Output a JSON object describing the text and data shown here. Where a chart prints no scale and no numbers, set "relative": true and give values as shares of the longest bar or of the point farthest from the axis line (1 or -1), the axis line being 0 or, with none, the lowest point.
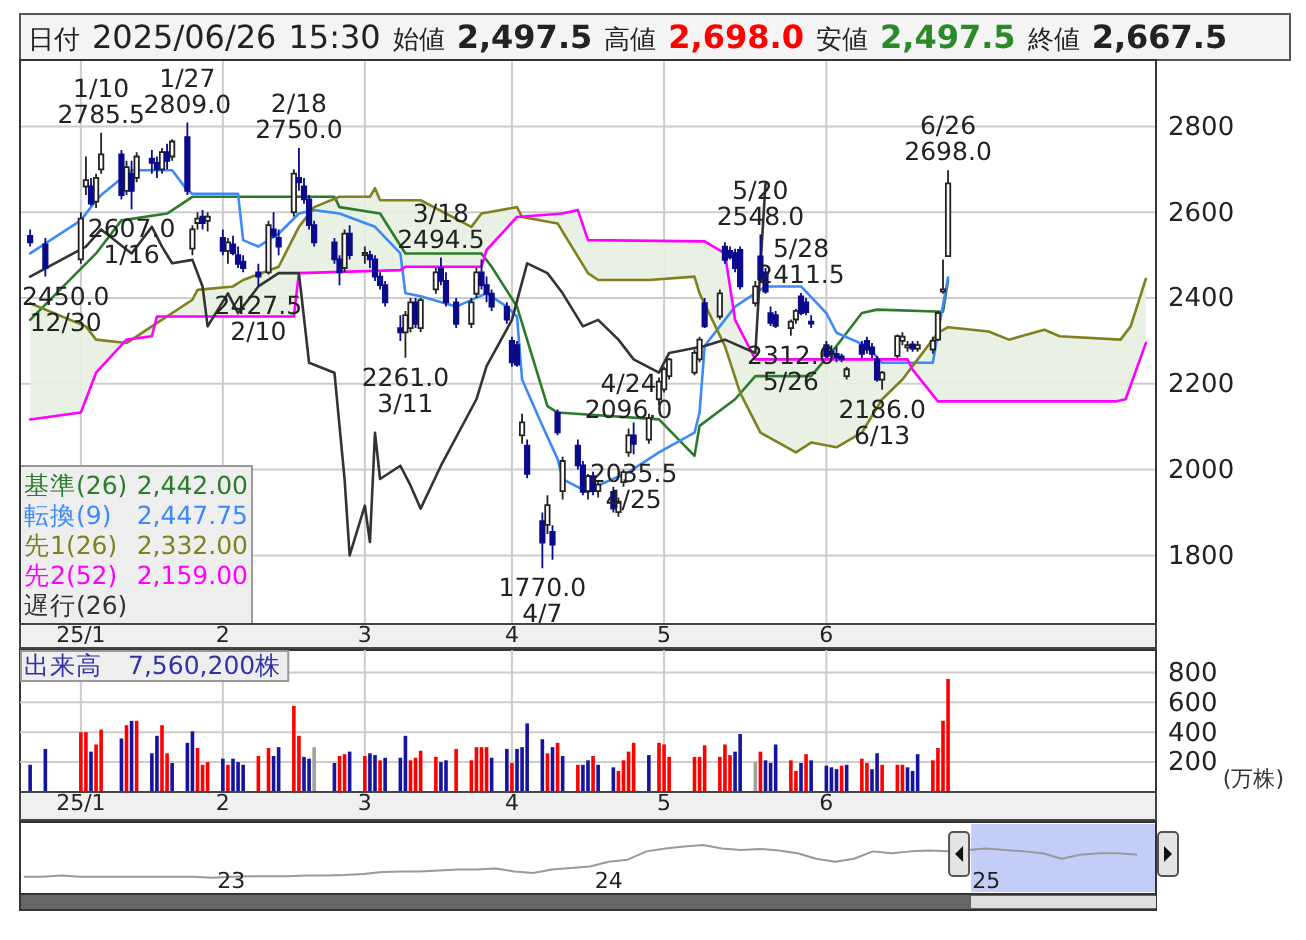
{
  "chart_data": [
    {
      "type": "candlestick",
      "title": "日付 2025/06/26 15:30 始値 2,497.5 高値 2,698.0 安値 2,497.5 終値 2,667.5",
      "x": [
        "2024-12-27",
        "2024-12-30",
        "2025-01-06",
        "2025-01-07",
        "2025-01-08",
        "2025-01-09",
        "2025-01-10",
        "2025-01-14",
        "2025-01-15",
        "2025-01-16",
        "2025-01-17",
        "2025-01-20",
        "2025-01-21",
        "2025-01-22",
        "2025-01-23",
        "2025-01-24",
        "2025-01-27",
        "2025-01-28",
        "2025-01-29",
        "2025-01-30",
        "2025-01-31",
        "2025-02-03",
        "2025-02-04",
        "2025-02-05",
        "2025-02-06",
        "2025-02-07",
        "2025-02-10",
        "2025-02-12",
        "2025-02-13",
        "2025-02-14",
        "2025-02-17",
        "2025-02-18",
        "2025-02-19",
        "2025-02-20",
        "2025-02-21",
        "2025-02-25",
        "2025-02-26",
        "2025-02-27",
        "2025-02-28",
        "2025-03-03",
        "2025-03-04",
        "2025-03-05",
        "2025-03-06",
        "2025-03-07",
        "2025-03-10",
        "2025-03-11",
        "2025-03-12",
        "2025-03-13",
        "2025-03-14",
        "2025-03-17",
        "2025-03-18",
        "2025-03-19",
        "2025-03-21",
        "2025-03-24",
        "2025-03-25",
        "2025-03-26",
        "2025-03-27",
        "2025-03-28",
        "2025-03-31",
        "2025-04-01",
        "2025-04-02",
        "2025-04-03",
        "2025-04-04",
        "2025-04-07",
        "2025-04-08",
        "2025-04-09",
        "2025-04-10",
        "2025-04-11",
        "2025-04-14",
        "2025-04-15",
        "2025-04-16",
        "2025-04-17",
        "2025-04-18",
        "2025-04-21",
        "2025-04-22",
        "2025-04-23",
        "2025-04-24",
        "2025-04-25",
        "2025-04-28",
        "2025-04-30",
        "2025-05-01",
        "2025-05-02",
        "2025-05-07",
        "2025-05-08",
        "2025-05-09",
        "2025-05-12",
        "2025-05-13",
        "2025-05-14",
        "2025-05-15",
        "2025-05-16",
        "2025-05-19",
        "2025-05-20",
        "2025-05-21",
        "2025-05-22",
        "2025-05-23",
        "2025-05-26",
        "2025-05-27",
        "2025-05-28",
        "2025-05-29",
        "2025-05-30",
        "2025-06-02",
        "2025-06-03",
        "2025-06-04",
        "2025-06-05",
        "2025-06-06",
        "2025-06-09",
        "2025-06-10",
        "2025-06-11",
        "2025-06-12",
        "2025-06-13",
        "2025-06-16",
        "2025-06-17",
        "2025-06-18",
        "2025-06-19",
        "2025-06-20",
        "2025-06-23",
        "2025-06-24",
        "2025-06-25",
        "2025-06-26"
      ],
      "ohlc": [
        [
          2545,
          2560,
          2520,
          2530
        ],
        [
          2525,
          2540,
          2450,
          2470
        ],
        [
          2490,
          2600,
          2480,
          2585
        ],
        [
          2660,
          2730,
          2640,
          2675
        ],
        [
          2660,
          2680,
          2615,
          2620
        ],
        [
          2625,
          2690,
          2610,
          2680
        ],
        [
          2700,
          2785.5,
          2690,
          2735
        ],
        [
          2735,
          2745,
          2630,
          2640
        ],
        [
          2650,
          2720,
          2640,
          2705
        ],
        [
          2690,
          2720,
          2607,
          2650
        ],
        [
          2680,
          2740,
          2670,
          2730
        ],
        [
          2725,
          2745,
          2690,
          2715
        ],
        [
          2715,
          2730,
          2680,
          2700
        ],
        [
          2700,
          2750,
          2690,
          2740
        ],
        [
          2740,
          2760,
          2700,
          2720
        ],
        [
          2730,
          2770,
          2720,
          2765
        ],
        [
          2775,
          2809,
          2640,
          2650
        ],
        [
          2515,
          2570,
          2500,
          2560
        ],
        [
          2575,
          2600,
          2560,
          2585
        ],
        [
          2590,
          2605,
          2560,
          2575
        ],
        [
          2580,
          2600,
          2555,
          2590
        ],
        [
          2540,
          2560,
          2500,
          2510
        ],
        [
          2510,
          2540,
          2480,
          2530
        ],
        [
          2525,
          2545,
          2500,
          2505
        ],
        [
          2500,
          2520,
          2470,
          2480
        ],
        [
          2485,
          2500,
          2460,
          2470
        ],
        [
          2460,
          2480,
          2427.5,
          2450
        ],
        [
          2460,
          2580,
          2455,
          2570
        ],
        [
          2560,
          2600,
          2540,
          2545
        ],
        [
          2540,
          2560,
          2500,
          2520
        ],
        [
          2600,
          2700,
          2590,
          2690
        ],
        [
          2680,
          2750,
          2650,
          2670
        ],
        [
          2660,
          2680,
          2620,
          2630
        ],
        [
          2630,
          2640,
          2560,
          2570
        ],
        [
          2570,
          2580,
          2520,
          2530
        ],
        [
          2530,
          2540,
          2480,
          2490
        ],
        [
          2490,
          2500,
          2430,
          2460
        ],
        [
          2470,
          2560,
          2460,
          2550
        ],
        [
          2550,
          2570,
          2490,
          2500
        ],
        [
          2500,
          2520,
          2480,
          2505
        ],
        [
          2500,
          2510,
          2470,
          2490
        ],
        [
          2490,
          2500,
          2440,
          2450
        ],
        [
          2450,
          2460,
          2420,
          2430
        ],
        [
          2430,
          2440,
          2380,
          2390
        ],
        [
          2330,
          2360,
          2300,
          2320
        ],
        [
          2320,
          2370,
          2261,
          2360
        ],
        [
          2330,
          2400,
          2320,
          2390
        ],
        [
          2390,
          2400,
          2330,
          2340
        ],
        [
          2330,
          2400,
          2320,
          2395
        ],
        [
          2420,
          2470,
          2410,
          2460
        ],
        [
          2470,
          2494.5,
          2430,
          2440
        ],
        [
          2440,
          2460,
          2380,
          2390
        ],
        [
          2390,
          2400,
          2330,
          2340
        ],
        [
          2340,
          2400,
          2330,
          2390
        ],
        [
          2410,
          2470,
          2400,
          2460
        ],
        [
          2460,
          2490,
          2420,
          2430
        ],
        [
          2430,
          2450,
          2390,
          2410
        ],
        [
          2410,
          2420,
          2370,
          2380
        ],
        [
          2380,
          2390,
          2340,
          2350
        ],
        [
          2300,
          2310,
          2240,
          2250
        ],
        [
          2290,
          2300,
          2240,
          2245
        ],
        [
          2080,
          2130,
          2060,
          2110
        ],
        [
          2056,
          2070,
          1980,
          1990
        ],
        [
          1880,
          1900,
          1770,
          1830
        ],
        [
          1871,
          1940,
          1850,
          1917
        ],
        [
          1855,
          1870,
          1790,
          1825
        ],
        [
          2133,
          2140,
          2080,
          2087
        ],
        [
          1950,
          2030,
          1930,
          2020
        ],
        [
          2056,
          2070,
          2000,
          2010
        ],
        [
          2010,
          2020,
          1940,
          1948
        ],
        [
          1950,
          1990,
          1930,
          1985
        ],
        [
          1985,
          1995,
          1940,
          1950
        ],
        [
          1950,
          1975,
          1935,
          1965
        ],
        [
          1948,
          1960,
          1900,
          1909
        ],
        [
          1901,
          1935,
          1890,
          1925
        ],
        [
          1971,
          2000,
          1960,
          1994
        ],
        [
          2040,
          2096,
          2030,
          2080
        ],
        [
          2080,
          2110,
          2035.5,
          2060
        ],
        [
          2070,
          2130,
          2060,
          2120
        ],
        [
          2164,
          2215,
          2150,
          2205
        ],
        [
          2187,
          2240,
          2180,
          2234
        ],
        [
          2218,
          2260,
          2210,
          2257
        ],
        [
          2226,
          2280,
          2220,
          2272
        ],
        [
          2257,
          2310,
          2250,
          2303
        ],
        [
          2388,
          2400,
          2330,
          2334
        ],
        [
          2357,
          2420,
          2350,
          2411
        ],
        [
          2520,
          2530,
          2480,
          2489
        ],
        [
          2510,
          2520,
          2490,
          2495
        ],
        [
          2505,
          2515,
          2460,
          2470
        ],
        [
          2512,
          2520,
          2420,
          2427
        ],
        [
          2388,
          2440,
          2380,
          2427
        ],
        [
          2497,
          2548,
          2440,
          2443
        ],
        [
          2460,
          2470,
          2410,
          2415
        ],
        [
          2365,
          2380,
          2335,
          2342
        ],
        [
          2360,
          2370,
          2330,
          2335
        ],
        [
          2330,
          2350,
          2312,
          2345
        ],
        [
          2350,
          2375,
          2340,
          2370
        ],
        [
          2404,
          2411.5,
          2360,
          2365
        ],
        [
          2390,
          2400,
          2360,
          2367
        ],
        [
          2345,
          2360,
          2330,
          2342
        ],
        [
          2290,
          2300,
          2260,
          2265
        ],
        [
          2275,
          2290,
          2260,
          2270
        ],
        [
          2270,
          2285,
          2250,
          2262
        ],
        [
          2264,
          2270,
          2250,
          2257
        ],
        [
          2218,
          2240,
          2210,
          2234
        ],
        [
          2290,
          2300,
          2260,
          2270
        ],
        [
          2300,
          2310,
          2270,
          2280
        ],
        [
          2285,
          2295,
          2260,
          2270
        ],
        [
          2257,
          2265,
          2205,
          2210
        ],
        [
          2210,
          2230,
          2186,
          2226
        ],
        [
          2265,
          2315,
          2260,
          2311
        ],
        [
          2300,
          2320,
          2290,
          2310
        ],
        [
          2285,
          2300,
          2275,
          2290
        ],
        [
          2292,
          2300,
          2275,
          2282
        ],
        [
          2282,
          2300,
          2275,
          2290
        ],
        [
          2280,
          2310,
          2270,
          2300
        ],
        [
          2303,
          2370,
          2300,
          2365
        ],
        [
          2415,
          2490,
          2410,
          2420
        ],
        [
          2497.5,
          2698,
          2497.5,
          2667.5
        ]
      ],
      "series": [
        {
          "name": "基準(26)",
          "type": "line",
          "color": "#2c7a2c",
          "x": [
            "2024-12-27",
            "2025-01-09",
            "2025-01-14",
            "2025-01-23",
            "2025-01-28",
            "2025-02-25",
            "2025-02-26",
            "2025-03-06",
            "2025-03-11",
            "2025-03-26",
            "2025-03-28",
            "2025-04-02",
            "2025-04-08",
            "2025-04-10",
            "2025-04-30",
            "2025-05-07",
            "2025-05-08",
            "2025-05-15",
            "2025-05-19",
            "2025-05-30",
            "2025-06-04",
            "2025-06-09",
            "2025-06-12",
            "2025-06-25",
            "2025-06-26"
          ],
          "values": [
            2349,
            2504,
            2581,
            2597,
            2636,
            2636,
            2612,
            2597,
            2504,
            2504,
            2473,
            2380,
            2148,
            2133,
            2117,
            2032,
            2102,
            2164,
            2218,
            2218,
            2288,
            2365,
            2373,
            2368,
            2442
          ]
        },
        {
          "name": "転換(9)",
          "type": "line",
          "color": "#3d8af7",
          "x": [
            "2024-12-27",
            "2025-01-06",
            "2025-01-09",
            "2025-01-10",
            "2025-01-16",
            "2025-01-24",
            "2025-01-27",
            "2025-01-28",
            "2025-02-06",
            "2025-02-07",
            "2025-02-10",
            "2025-02-14",
            "2025-02-18",
            "2025-02-21",
            "2025-02-26",
            "2025-03-05",
            "2025-03-10",
            "2025-03-11",
            "2025-03-14",
            "2025-03-21",
            "2025-03-27",
            "2025-03-31",
            "2025-04-02",
            "2025-04-03",
            "2025-04-07",
            "2025-04-10",
            "2025-04-11",
            "2025-04-16",
            "2025-04-18",
            "2025-04-24",
            "2025-04-30",
            "2025-05-07",
            "2025-05-08",
            "2025-05-09",
            "2025-05-15",
            "2025-05-21",
            "2025-05-28",
            "2025-06-02",
            "2025-06-04",
            "2025-06-10",
            "2025-06-13",
            "2025-06-23",
            "2025-06-24",
            "2025-06-26"
          ],
          "values": [
            2504,
            2581,
            2628,
            2640,
            2698,
            2698,
            2651,
            2643,
            2643,
            2535,
            2520,
            2550,
            2597,
            2605,
            2597,
            2566,
            2504,
            2411,
            2404,
            2380,
            2411,
            2380,
            2357,
            2210,
            2102,
            2025,
            1978,
            1947,
            1963,
            1994,
            2040,
            2086,
            2133,
            2288,
            2380,
            2427,
            2427,
            2365,
            2319,
            2288,
            2249,
            2249,
            2319,
            2447.75
          ]
        },
        {
          "name": "先1(26)",
          "type": "line",
          "color": "#808020",
          "x": [
            "2024-12-27",
            "2025-01-07",
            "2025-01-09",
            "2025-01-15",
            "2025-01-20",
            "2025-01-28",
            "2025-01-29",
            "2025-02-05",
            "2025-02-07",
            "2025-02-14",
            "2025-02-18",
            "2025-02-21",
            "2025-02-26",
            "2025-03-04",
            "2025-03-05",
            "2025-03-06",
            "2025-03-14",
            "2025-03-24",
            "2025-03-26",
            "2025-04-02",
            "2025-04-03",
            "2025-04-10",
            "2025-04-16",
            "2025-04-18",
            "2025-04-28",
            "2025-05-07",
            "2025-05-08",
            "2025-05-13",
            "2025-05-16",
            "2025-05-20",
            "2025-05-27",
            "2025-05-30",
            "2025-06-04",
            "2025-06-09",
            "2025-06-13",
            "2025-06-17",
            "2025-06-20",
            "2025-06-24",
            "2025-06-26",
            "2025-07-04",
            "2025-07-08",
            "2025-07-15",
            "2025-07-18",
            "2025-07-30",
            "2025-08-01",
            "2025-08-04"
          ],
          "values": [
            2388,
            2334,
            2303,
            2295,
            2334,
            2396,
            2419,
            2427,
            2442,
            2473,
            2566,
            2612,
            2636,
            2636,
            2656,
            2628,
            2628,
            2566,
            2597,
            2612,
            2589,
            2574,
            2458,
            2442,
            2442,
            2450,
            2411,
            2288,
            2179,
            2086,
            2040,
            2063,
            2052,
            2086,
            2164,
            2210,
            2257,
            2319,
            2332,
            2322,
            2303,
            2326,
            2311,
            2303,
            2334,
            2445
          ]
        },
        {
          "name": "先2(52)",
          "type": "line",
          "color": "#ff00ff",
          "x": [
            "2024-12-27",
            "2025-01-06",
            "2025-01-09",
            "2025-01-15",
            "2025-01-20",
            "2025-01-21",
            "2025-02-17",
            "2025-02-18",
            "2025-03-10",
            "2025-03-11",
            "2025-03-26",
            "2025-03-27",
            "2025-04-02",
            "2025-04-11",
            "2025-04-14",
            "2025-04-16",
            "2025-05-09",
            "2025-05-13",
            "2025-05-15",
            "2025-05-19",
            "2025-06-18",
            "2025-06-19",
            "2025-06-24",
            "2025-06-26",
            "2025-07-29",
            "2025-07-31",
            "2025-08-04"
          ],
          "values": [
            2117,
            2133,
            2226,
            2303,
            2311,
            2357,
            2357,
            2458,
            2465,
            2473,
            2473,
            2512,
            2589,
            2597,
            2605,
            2535,
            2532,
            2504,
            2349,
            2257,
            2257,
            2233,
            2159,
            2159,
            2159,
            2164,
            2295
          ]
        },
        {
          "name": "遅行(26)",
          "type": "line",
          "color": "#333333",
          "x": [
            "2024-12-27",
            "2025-01-07",
            "2025-01-10",
            "2025-01-16",
            "2025-01-20",
            "2025-01-22",
            "2025-01-24",
            "2025-01-28",
            "2025-01-30",
            "2025-01-31",
            "2025-02-04",
            "2025-02-06",
            "2025-02-10",
            "2025-02-14",
            "2025-02-18",
            "2025-02-20",
            "2025-02-25",
            "2025-02-27",
            "2025-02-28",
            "2025-03-03",
            "2025-03-04",
            "2025-03-05",
            "2025-03-06",
            "2025-03-10",
            "2025-03-12",
            "2025-03-14",
            "2025-03-18",
            "2025-03-25",
            "2025-03-27",
            "2025-04-01",
            "2025-04-04",
            "2025-04-08",
            "2025-04-10",
            "2025-04-11",
            "2025-04-15",
            "2025-04-18",
            "2025-04-22",
            "2025-04-25",
            "2025-04-30",
            "2025-05-02",
            "2025-05-09",
            "2025-05-13",
            "2025-05-19",
            "2025-05-20",
            "2025-05-21"
          ],
          "values": [
            2450,
            2520,
            2560,
            2504,
            2566,
            2520,
            2481,
            2489,
            2427,
            2334,
            2411,
            2365,
            2427,
            2458,
            2458,
            2249,
            2226,
            1978,
            1800,
            1916,
            1831,
            2086,
            1978,
            2009,
            1963,
            1909,
            2009,
            2164,
            2241,
            2349,
            2481,
            2458,
            2427,
            2411,
            2334,
            2349,
            2303,
            2257,
            2226,
            2272,
            2288,
            2303,
            2272,
            2473,
            2667.5
          ]
        }
      ],
      "annotations": [
        {
          "text": "1/10\n2785.5",
          "x": "2025-01-10",
          "y": 2785.5
        },
        {
          "text": "1/27\n2809.0",
          "x": "2025-01-27",
          "y": 2809
        },
        {
          "text": "2607.0\n1/16",
          "x": "2025-01-16",
          "y": 2607
        },
        {
          "text": "2450.0\n12/30",
          "x": "2024-12-30",
          "y": 2450
        },
        {
          "text": "2/18\n2750.0",
          "x": "2025-02-18",
          "y": 2750
        },
        {
          "text": "2427.5\n2/10",
          "x": "2025-02-10",
          "y": 2427.5
        },
        {
          "text": "3/18\n2494.5",
          "x": "2025-03-18",
          "y": 2494.5
        },
        {
          "text": "2261.0\n3/11",
          "x": "2025-03-11",
          "y": 2261
        },
        {
          "text": "1770.0\n4/7",
          "x": "2025-04-07",
          "y": 1770
        },
        {
          "text": "4/24\n2096.0",
          "x": "2025-04-24",
          "y": 2096
        },
        {
          "text": "2035.5\n4/25",
          "x": "2025-04-25",
          "y": 2035.5
        },
        {
          "text": "5/20\n2548.0",
          "x": "2025-05-20",
          "y": 2548
        },
        {
          "text": "2312.0\n5/26",
          "x": "2025-05-26",
          "y": 2312
        },
        {
          "text": "5/28\n2411.5",
          "x": "2025-05-28",
          "y": 2411.5
        },
        {
          "text": "2186.0\n6/13",
          "x": "2025-06-13",
          "y": 2186
        },
        {
          "text": "6/26\n2698.0",
          "x": "2025-06-26",
          "y": 2698
        },
        "2,442.00",
        "2,447.75",
        "2,332.00",
        "2,159.00"
      ],
      "ylim": [
        1640,
        2955
      ],
      "yticks": [
        1800,
        2000,
        2200,
        2400,
        2600,
        2800
      ],
      "xlim": [
        "2024-12-25",
        "2025-08-06"
      ],
      "xticks": [
        {
          "value": "2025-01-06",
          "label": "25/1"
        },
        {
          "value": "2025-02-03",
          "label": "2"
        },
        {
          "value": "2025-03-03",
          "label": "3"
        },
        {
          "value": "2025-04-01",
          "label": "4"
        },
        {
          "value": "2025-05-01",
          "label": "5"
        },
        {
          "value": "2025-06-02",
          "label": "6"
        }
      ],
      "grid": true,
      "legend": "bottom left"
    },
    {
      "type": "bar",
      "title": "出来高　7,560,200株",
      "ylabel": "(万株)",
      "x": [
        "2024-12-27",
        "2024-12-30",
        "2025-01-06",
        "2025-01-07",
        "2025-01-08",
        "2025-01-09",
        "2025-01-10",
        "2025-01-14",
        "2025-01-15",
        "2025-01-16",
        "2025-01-17",
        "2025-01-20",
        "2025-01-21",
        "2025-01-22",
        "2025-01-23",
        "2025-01-24",
        "2025-01-27",
        "2025-01-28",
        "2025-01-29",
        "2025-01-30",
        "2025-01-31",
        "2025-02-03",
        "2025-02-04",
        "2025-02-05",
        "2025-02-06",
        "2025-02-07",
        "2025-02-10",
        "2025-02-12",
        "2025-02-13",
        "2025-02-14",
        "2025-02-17",
        "2025-02-18",
        "2025-02-19",
        "2025-02-20",
        "2025-02-21",
        "2025-02-25",
        "2025-02-26",
        "2025-02-27",
        "2025-02-28",
        "2025-03-03",
        "2025-03-04",
        "2025-03-05",
        "2025-03-06",
        "2025-03-07",
        "2025-03-10",
        "2025-03-11",
        "2025-03-12",
        "2025-03-13",
        "2025-03-14",
        "2025-03-17",
        "2025-03-18",
        "2025-03-19",
        "2025-03-21",
        "2025-03-24",
        "2025-03-25",
        "2025-03-26",
        "2025-03-27",
        "2025-03-28",
        "2025-03-31",
        "2025-04-01",
        "2025-04-02",
        "2025-04-03",
        "2025-04-04",
        "2025-04-07",
        "2025-04-08",
        "2025-04-09",
        "2025-04-10",
        "2025-04-11",
        "2025-04-14",
        "2025-04-15",
        "2025-04-16",
        "2025-04-17",
        "2025-04-18",
        "2025-04-21",
        "2025-04-22",
        "2025-04-23",
        "2025-04-24",
        "2025-04-25",
        "2025-04-28",
        "2025-04-30",
        "2025-05-01",
        "2025-05-02",
        "2025-05-07",
        "2025-05-08",
        "2025-05-09",
        "2025-05-12",
        "2025-05-13",
        "2025-05-14",
        "2025-05-15",
        "2025-05-16",
        "2025-05-19",
        "2025-05-20",
        "2025-05-21",
        "2025-05-22",
        "2025-05-23",
        "2025-05-26",
        "2025-05-27",
        "2025-05-28",
        "2025-05-29",
        "2025-05-30",
        "2025-06-02",
        "2025-06-03",
        "2025-06-04",
        "2025-06-05",
        "2025-06-06",
        "2025-06-09",
        "2025-06-10",
        "2025-06-11",
        "2025-06-12",
        "2025-06-13",
        "2025-06-16",
        "2025-06-17",
        "2025-06-18",
        "2025-06-19",
        "2025-06-20",
        "2025-06-23",
        "2025-06-24",
        "2025-06-25",
        "2025-06-26"
      ],
      "values": [
        182,
        288,
        400,
        400,
        270,
        318,
        417,
        358,
        447,
        476,
        476,
        259,
        376,
        447,
        259,
        194,
        329,
        406,
        294,
        182,
        200,
        223,
        182,
        223,
        200,
        182,
        241,
        294,
        241,
        300,
        576,
        376,
        235,
        223,
        300,
        194,
        241,
        253,
        270,
        241,
        259,
        247,
        212,
        229,
        229,
        376,
        212,
        229,
        276,
        235,
        200,
        212,
        288,
        212,
        300,
        300,
        300,
        229,
        288,
        194,
        288,
        300,
        459,
        353,
        259,
        300,
        329,
        241,
        182,
        182,
        212,
        241,
        182,
        165,
        141,
        212,
        270,
        329,
        247,
        329,
        318,
        235,
        235,
        235,
        312,
        235,
        318,
        247,
        270,
        388,
        200,
        270,
        212,
        194,
        318,
        212,
        141,
        194,
        253,
        212,
        176,
        165,
        153,
        176,
        182,
        223,
        194,
        153,
        259,
        182,
        182,
        182,
        165,
        141,
        253,
        212,
        294,
        476,
        756
      ],
      "colors": [
        "#1414a0",
        "#1414a0",
        "#ff0000",
        "#ff0000",
        "#1414a0",
        "#ff0000",
        "#ff0000",
        "#1414a0",
        "#ff0000",
        "#1414a0",
        "#ff0000",
        "#1414a0",
        "#1414a0",
        "#ff0000",
        "#ff0000",
        "#1414a0",
        "#1414a0",
        "#1414a0",
        "#ff0000",
        "#ff0000",
        "#ff0000",
        "#1414a0",
        "#ff0000",
        "#1414a0",
        "#1414a0",
        "#1414a0",
        "#ff0000",
        "#ff0000",
        "#1414a0",
        "#1414a0",
        "#ff0000",
        "#ff0000",
        "#1414a0",
        "#1414a0",
        "#a0a0a0",
        "#1414a0",
        "#ff0000",
        "#ff0000",
        "#1414a0",
        "#ff0000",
        "#1414a0",
        "#1414a0",
        "#ff0000",
        "#1414a0",
        "#1414a0",
        "#1414a0",
        "#ff0000",
        "#ff0000",
        "#ff0000",
        "#ff0000",
        "#1414a0",
        "#1414a0",
        "#ff0000",
        "#ff0000",
        "#ff0000",
        "#ff0000",
        "#ff0000",
        "#1414a0",
        "#1414a0",
        "#ff0000",
        "#1414a0",
        "#1414a0",
        "#1414a0",
        "#1414a0",
        "#ff0000",
        "#1414a0",
        "#ff0000",
        "#1414a0",
        "#ff0000",
        "#1414a0",
        "#1414a0",
        "#ff0000",
        "#1414a0",
        "#1414a0",
        "#ff0000",
        "#ff0000",
        "#ff0000",
        "#ff0000",
        "#1414a0",
        "#ff0000",
        "#ff0000",
        "#ff0000",
        "#ff0000",
        "#ff0000",
        "#ff0000",
        "#ff0000",
        "#ff0000",
        "#ff0000",
        "#1414a0",
        "#1414a0",
        "#a0a0a0",
        "#ff0000",
        "#1414a0",
        "#1414a0",
        "#1414a0",
        "#ff0000",
        "#ff0000",
        "#1414a0",
        "#ff0000",
        "#1414a0",
        "#1414a0",
        "#1414a0",
        "#1414a0",
        "#ff0000",
        "#1414a0",
        "#ff0000",
        "#ff0000",
        "#1414a0",
        "#1414a0",
        "#ff0000",
        "#ff0000",
        "#ff0000",
        "#1414a0",
        "#1414a0",
        "#1414a0",
        "#ff0000",
        "#ff0000",
        "#ff0000",
        "#ff0000"
      ],
      "ylim": [
        0,
        950
      ],
      "yticks": [
        200,
        400,
        600,
        800
      ],
      "xlim": [
        "2024-12-25",
        "2025-08-06"
      ],
      "xticks": [
        {
          "value": "2025-01-06",
          "label": "25/1"
        },
        {
          "value": "2025-02-03",
          "label": "2"
        },
        {
          "value": "2025-03-03",
          "label": "3"
        },
        {
          "value": "2025-04-01",
          "label": "4"
        },
        {
          "value": "2025-05-01",
          "label": "5"
        },
        {
          "value": "2025-06-02",
          "label": "6"
        }
      ],
      "grid": true
    },
    {
      "type": "line",
      "relative": true,
      "x": [
        2022.45,
        2022.5,
        2022.55,
        2022.6,
        2022.65,
        2022.7,
        2022.75,
        2022.8,
        2022.85,
        2022.9,
        2022.95,
        2023,
        2023.05,
        2023.1,
        2023.15,
        2023.2,
        2023.25,
        2023.3,
        2023.35,
        2023.4,
        2023.45,
        2023.5,
        2023.55,
        2023.6,
        2023.65,
        2023.7,
        2023.75,
        2023.8,
        2023.85,
        2023.9,
        2023.95,
        2024,
        2024.05,
        2024.1,
        2024.15,
        2024.2,
        2024.25,
        2024.3,
        2024.35,
        2024.4,
        2024.45,
        2024.5,
        2024.55,
        2024.6,
        2024.65,
        2024.7,
        2024.75,
        2024.8,
        2024.85,
        2024.9,
        2024.95,
        2025,
        2025.05,
        2025.1,
        2025.15,
        2025.2,
        2025.25,
        2025.3,
        2025.35,
        2025.4
      ],
      "series": [
        {
          "color": "#999999",
          "values": [
            0.35,
            0.35,
            0.38,
            0.35,
            0.35,
            0.35,
            0.35,
            0.35,
            0.35,
            0.35,
            0.33,
            0.35,
            0.36,
            0.36,
            0.36,
            0.38,
            0.38,
            0.39,
            0.41,
            0.45,
            0.46,
            0.46,
            0.48,
            0.5,
            0.5,
            0.52,
            0.46,
            0.43,
            0.5,
            0.53,
            0.56,
            0.66,
            0.7,
            0.87,
            0.93,
            0.97,
            1,
            0.93,
            0.9,
            0.92,
            0.89,
            0.83,
            0.72,
            0.66,
            0.72,
            0.87,
            0.83,
            0.87,
            0.89,
            0.87,
            0.9,
            0.93,
            0.9,
            0.87,
            0.83,
            0.72,
            0.8,
            0.83,
            0.83,
            0.8
          ]
        }
      ],
      "xlim": [
        2022.44,
        2025.45
      ],
      "xticks": [
        {
          "value": 2023,
          "label": "23"
        },
        {
          "value": 2024,
          "label": "24"
        },
        {
          "value": 2025,
          "label": "25"
        }
      ],
      "tick_labels": "x",
      "bands": [
        {
          "axis": "x",
          "from": 2024.96,
          "to": 2025.45,
          "color": "#c3cdf7"
        }
      ]
    }
  ]
}
